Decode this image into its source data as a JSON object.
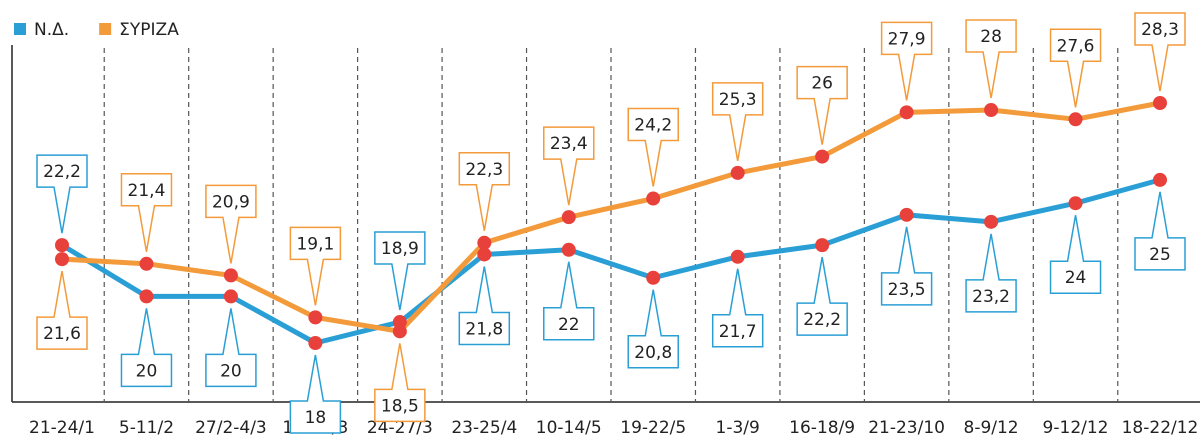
{
  "chart_data": {
    "type": "line",
    "categories": [
      "21-24/1",
      "5-11/2",
      "27/2-4/3",
      "11-13/3",
      "24-27/3",
      "23-25/4",
      "10-14/5",
      "19-22/5",
      "1-3/9",
      "16-18/9",
      "21-23/10",
      "8-9/12",
      "9-12/12",
      "18-22/12"
    ],
    "series": [
      {
        "name": "Ν.Δ.",
        "color": "#2a9fd6",
        "values": [
          22.2,
          20,
          20,
          18,
          18.9,
          21.8,
          22,
          20.8,
          21.7,
          22.2,
          23.5,
          23.2,
          24,
          25
        ],
        "value_labels": [
          "22,2",
          "20",
          "20",
          "18",
          "18,9",
          "21,8",
          "22",
          "20,8",
          "21,7",
          "22,2",
          "23,5",
          "23,2",
          "24",
          "25"
        ]
      },
      {
        "name": "ΣΥΡΙΖΑ",
        "color": "#f39a3a",
        "values": [
          21.6,
          21.4,
          20.9,
          19.1,
          18.5,
          22.3,
          23.4,
          24.2,
          25.3,
          26,
          27.9,
          28,
          27.6,
          28.3
        ],
        "value_labels": [
          "21,6",
          "21,4",
          "20,9",
          "19,1",
          "18,5",
          "22,3",
          "23,4",
          "24,2",
          "25,3",
          "26",
          "27,9",
          "28",
          "27,6",
          "28,3"
        ]
      }
    ],
    "marker_color": "#e8403a"
  }
}
